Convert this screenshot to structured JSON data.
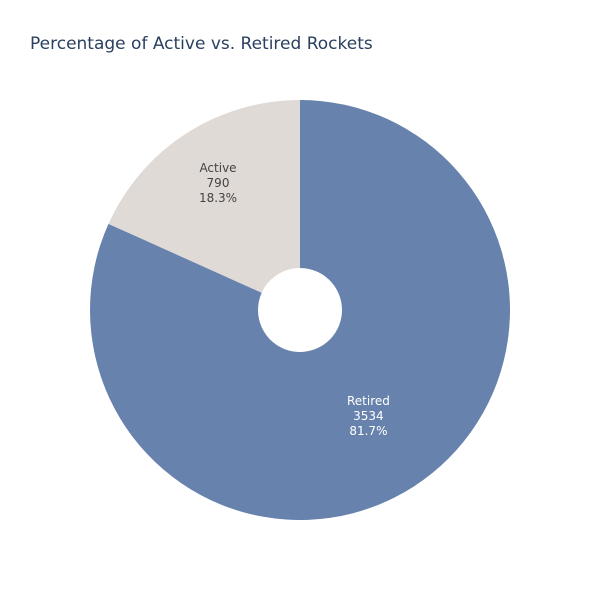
{
  "chart_data": {
    "type": "pie",
    "title": "Percentage of Active vs. Retired Rockets",
    "hole": 0.2,
    "labels": [
      "Retired",
      "Active"
    ],
    "values": [
      3534,
      790
    ],
    "percent_labels": [
      "81.7%",
      "18.3%"
    ],
    "colors": [
      "#6782ad",
      "#e0dad7"
    ],
    "label_colors": [
      "#ffffff",
      "#444444"
    ],
    "legend": false
  }
}
